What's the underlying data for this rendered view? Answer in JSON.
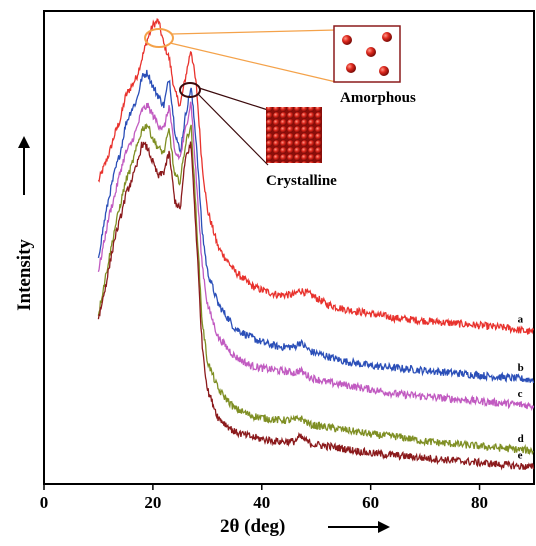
{
  "chart_data": {
    "type": "line",
    "xlabel": "2θ (deg)",
    "ylabel": "Intensity",
    "xlim": [
      0,
      90
    ],
    "xticks": [
      0,
      20,
      40,
      60,
      80
    ],
    "ylim": [
      0,
      100
    ],
    "y_ticks_shown": false,
    "grid": false,
    "x": [
      10,
      11,
      12,
      13,
      14,
      15,
      16,
      17,
      18,
      19,
      20,
      21,
      22,
      23,
      24,
      25,
      26,
      27,
      28,
      29,
      30,
      32,
      35,
      38,
      40,
      43,
      46,
      47,
      49,
      52,
      55,
      60,
      65,
      70,
      75,
      80,
      85,
      90
    ],
    "series": [
      {
        "name": "a",
        "color": "#e8322d",
        "values": [
          64,
          67,
          70,
          74,
          77,
          82,
          84,
          86,
          90,
          94,
          97,
          98,
          93,
          90,
          83,
          80,
          86,
          92,
          84,
          68,
          58,
          50,
          45,
          42,
          41,
          40,
          40,
          41,
          40,
          38,
          37,
          36,
          35,
          34.5,
          34,
          33.5,
          33,
          32
        ]
      },
      {
        "name": "b",
        "color": "#2b4fb8",
        "values": [
          48,
          55,
          61,
          66,
          70,
          76,
          79,
          81,
          86,
          87,
          84,
          82,
          80,
          86,
          75,
          70,
          78,
          84,
          72,
          54,
          45,
          38,
          33,
          31,
          30,
          29,
          29,
          30,
          28,
          27,
          26,
          25,
          24.5,
          24,
          23.5,
          23,
          22.5,
          22
        ]
      },
      {
        "name": "c",
        "color": "#c15bc1",
        "values": [
          45,
          51,
          57,
          61,
          66,
          70,
          72,
          75,
          79,
          80,
          78,
          76,
          75,
          80,
          70,
          69,
          75,
          81,
          64,
          47,
          38,
          31,
          27,
          25,
          24.5,
          24,
          23.5,
          24,
          22.5,
          21.5,
          21,
          20,
          19,
          18.5,
          18,
          17.5,
          17,
          16.5
        ]
      },
      {
        "name": "d",
        "color": "#7f8f24",
        "values": [
          36,
          42,
          48,
          54,
          59,
          64,
          67,
          71,
          75,
          76,
          73,
          71,
          70,
          75,
          65,
          64,
          72,
          76,
          56,
          35,
          26,
          20,
          16,
          14.5,
          14,
          13.5,
          13.5,
          14,
          12.5,
          12,
          11.5,
          10.5,
          10,
          9,
          8.5,
          8,
          7.5,
          7
        ]
      },
      {
        "name": "e",
        "color": "#8b1a1c",
        "values": [
          35,
          40,
          46,
          52,
          56,
          61,
          64,
          67,
          72,
          71,
          68,
          65,
          66,
          70,
          60,
          58,
          69,
          72,
          52,
          30,
          20,
          14,
          11,
          10,
          9.5,
          9,
          9,
          10,
          8.5,
          8,
          7.5,
          6.5,
          6,
          5.5,
          5,
          4.5,
          4,
          3.5
        ]
      }
    ],
    "annotations": [
      {
        "text": "Amorphous",
        "target_series": "a",
        "target_x": 21
      },
      {
        "text": "Crystalline",
        "target_series": "b",
        "target_x": 27
      }
    ],
    "arrows": [
      "y-axis",
      "x-axis"
    ]
  }
}
